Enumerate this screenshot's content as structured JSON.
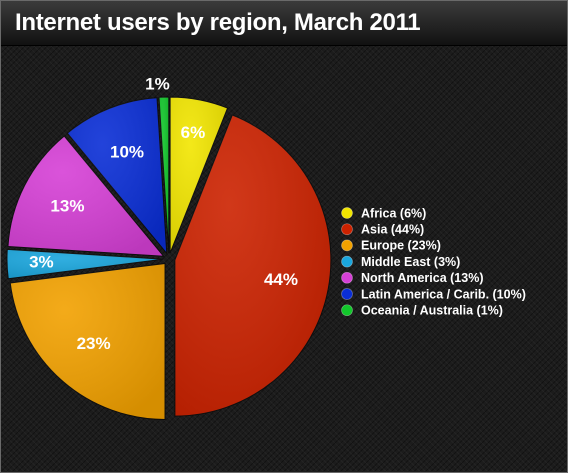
{
  "title": "Internet users by region, March 2011",
  "chart_data": {
    "type": "pie",
    "title": "Internet users by region, March 2011",
    "categories": [
      "Africa",
      "Asia",
      "Europe",
      "Middle East",
      "North America",
      "Latin America / Carib.",
      "Oceania / Australia"
    ],
    "values": [
      6,
      44,
      23,
      3,
      13,
      10,
      1
    ],
    "slice_labels": [
      "6%",
      "44%",
      "23%",
      "3%",
      "13%",
      "10%",
      "1%"
    ],
    "legend_labels": [
      "Africa (6%)",
      "Asia (44%)",
      "Europe (23%)",
      "Middle East (3%)",
      "North America (13%)",
      "Latin America / Carib. (10%)",
      "Oceania / Australia (1%)"
    ],
    "colors": [
      "#f2e600",
      "#cc2200",
      "#f2a100",
      "#1aa6dd",
      "#d640d6",
      "#0a2ed6",
      "#12c72b"
    ],
    "exploded": true,
    "legend_position": "right"
  }
}
